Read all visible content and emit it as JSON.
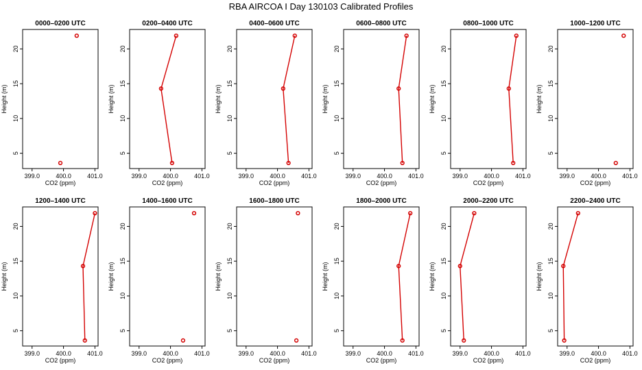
{
  "title": "RBA AIRCOA I  Day 130103  Calibrated Profiles",
  "colors": {
    "series": "#d40000",
    "axis": "#000000"
  },
  "chart_data": [
    {
      "type": "line",
      "title": "0000–0200 UTC",
      "xlabel": "CO2 (ppm)",
      "ylabel": "Height (m)",
      "xlim": [
        398.7,
        401.1
      ],
      "ylim": [
        2.8,
        22.8
      ],
      "x_ticks": [
        "399.0",
        "400.0",
        "401.0"
      ],
      "y_ticks": [
        "5",
        "10",
        "15",
        "20"
      ],
      "grid": false,
      "points": [
        {
          "co2": 400.42,
          "height": 21.9
        },
        {
          "co2": 399.9,
          "height": 3.6
        }
      ],
      "connected": false
    },
    {
      "type": "line",
      "title": "0200–0400 UTC",
      "xlabel": "CO2 (ppm)",
      "ylabel": "Height (m)",
      "xlim": [
        398.7,
        401.1
      ],
      "ylim": [
        2.8,
        22.8
      ],
      "x_ticks": [
        "399.0",
        "400.0",
        "401.0"
      ],
      "y_ticks": [
        "5",
        "10",
        "15",
        "20"
      ],
      "grid": false,
      "points": [
        {
          "co2": 400.18,
          "height": 21.9
        },
        {
          "co2": 399.7,
          "height": 14.3
        },
        {
          "co2": 400.05,
          "height": 3.6
        }
      ],
      "connected": true
    },
    {
      "type": "line",
      "title": "0400–0600 UTC",
      "xlabel": "CO2 (ppm)",
      "ylabel": "Height (m)",
      "xlim": [
        398.7,
        401.1
      ],
      "ylim": [
        2.8,
        22.8
      ],
      "x_ticks": [
        "399.0",
        "400.0",
        "401.0"
      ],
      "y_ticks": [
        "5",
        "10",
        "15",
        "20"
      ],
      "grid": false,
      "points": [
        {
          "co2": 400.55,
          "height": 21.9
        },
        {
          "co2": 400.18,
          "height": 14.3
        },
        {
          "co2": 400.35,
          "height": 3.6
        }
      ],
      "connected": true
    },
    {
      "type": "line",
      "title": "0600–0800 UTC",
      "xlabel": "CO2 (ppm)",
      "ylabel": "Height (m)",
      "xlim": [
        398.7,
        401.1
      ],
      "ylim": [
        2.8,
        22.8
      ],
      "x_ticks": [
        "399.0",
        "400.0",
        "401.0"
      ],
      "y_ticks": [
        "5",
        "10",
        "15",
        "20"
      ],
      "grid": false,
      "points": [
        {
          "co2": 400.7,
          "height": 21.9
        },
        {
          "co2": 400.45,
          "height": 14.3
        },
        {
          "co2": 400.57,
          "height": 3.6
        }
      ],
      "connected": true
    },
    {
      "type": "line",
      "title": "0800–1000 UTC",
      "xlabel": "CO2 (ppm)",
      "ylabel": "Height (m)",
      "xlim": [
        398.7,
        401.1
      ],
      "ylim": [
        2.8,
        22.8
      ],
      "x_ticks": [
        "399.0",
        "400.0",
        "401.0"
      ],
      "y_ticks": [
        "5",
        "10",
        "15",
        "20"
      ],
      "grid": false,
      "points": [
        {
          "co2": 400.79,
          "height": 21.9
        },
        {
          "co2": 400.55,
          "height": 14.3
        },
        {
          "co2": 400.69,
          "height": 3.6
        }
      ],
      "connected": true
    },
    {
      "type": "line",
      "title": "1000–1200 UTC",
      "xlabel": "CO2 (ppm)",
      "ylabel": "Height (m)",
      "xlim": [
        398.7,
        401.1
      ],
      "ylim": [
        2.8,
        22.8
      ],
      "x_ticks": [
        "399.0",
        "400.0",
        "401.0"
      ],
      "y_ticks": [
        "5",
        "10",
        "15",
        "20"
      ],
      "grid": false,
      "points": [
        {
          "co2": 400.8,
          "height": 21.9
        },
        {
          "co2": 400.55,
          "height": 3.6
        }
      ],
      "connected": false
    },
    {
      "type": "line",
      "title": "1200–1400 UTC",
      "xlabel": "CO2 (ppm)",
      "ylabel": "Height (m)",
      "xlim": [
        398.7,
        401.1
      ],
      "ylim": [
        2.8,
        22.8
      ],
      "x_ticks": [
        "399.0",
        "400.0",
        "401.0"
      ],
      "y_ticks": [
        "5",
        "10",
        "15",
        "20"
      ],
      "grid": false,
      "points": [
        {
          "co2": 401.0,
          "height": 21.9
        },
        {
          "co2": 400.62,
          "height": 14.3
        },
        {
          "co2": 400.68,
          "height": 3.6
        }
      ],
      "connected": true
    },
    {
      "type": "line",
      "title": "1400–1600 UTC",
      "xlabel": "CO2 (ppm)",
      "ylabel": "Height (m)",
      "xlim": [
        398.7,
        401.1
      ],
      "ylim": [
        2.8,
        22.8
      ],
      "x_ticks": [
        "399.0",
        "400.0",
        "401.0"
      ],
      "y_ticks": [
        "5",
        "10",
        "15",
        "20"
      ],
      "grid": false,
      "points": [
        {
          "co2": 400.75,
          "height": 21.9
        },
        {
          "co2": 400.4,
          "height": 3.6
        }
      ],
      "connected": false
    },
    {
      "type": "line",
      "title": "1600–1800 UTC",
      "xlabel": "CO2 (ppm)",
      "ylabel": "Height (m)",
      "xlim": [
        398.7,
        401.1
      ],
      "ylim": [
        2.8,
        22.8
      ],
      "x_ticks": [
        "399.0",
        "400.0",
        "401.0"
      ],
      "y_ticks": [
        "5",
        "10",
        "15",
        "20"
      ],
      "grid": false,
      "points": [
        {
          "co2": 400.65,
          "height": 21.9
        },
        {
          "co2": 400.6,
          "height": 3.6
        }
      ],
      "connected": false
    },
    {
      "type": "line",
      "title": "1800–2000 UTC",
      "xlabel": "CO2 (ppm)",
      "ylabel": "Height (m)",
      "xlim": [
        398.7,
        401.1
      ],
      "ylim": [
        2.8,
        22.8
      ],
      "x_ticks": [
        "399.0",
        "400.0",
        "401.0"
      ],
      "y_ticks": [
        "5",
        "10",
        "15",
        "20"
      ],
      "grid": false,
      "points": [
        {
          "co2": 400.82,
          "height": 21.9
        },
        {
          "co2": 400.45,
          "height": 14.3
        },
        {
          "co2": 400.57,
          "height": 3.6
        }
      ],
      "connected": true
    },
    {
      "type": "line",
      "title": "2000–2200 UTC",
      "xlabel": "CO2 (ppm)",
      "ylabel": "Height (m)",
      "xlim": [
        398.7,
        401.1
      ],
      "ylim": [
        2.8,
        22.8
      ],
      "x_ticks": [
        "399.0",
        "400.0",
        "401.0"
      ],
      "y_ticks": [
        "5",
        "10",
        "15",
        "20"
      ],
      "grid": false,
      "points": [
        {
          "co2": 399.45,
          "height": 21.9
        },
        {
          "co2": 399.0,
          "height": 14.3
        },
        {
          "co2": 399.12,
          "height": 3.6
        }
      ],
      "connected": true
    },
    {
      "type": "line",
      "title": "2200–2400 UTC",
      "xlabel": "CO2 (ppm)",
      "ylabel": "Height (m)",
      "xlim": [
        398.7,
        401.1
      ],
      "ylim": [
        2.8,
        22.8
      ],
      "x_ticks": [
        "399.0",
        "400.0",
        "401.0"
      ],
      "y_ticks": [
        "5",
        "10",
        "15",
        "20"
      ],
      "grid": false,
      "points": [
        {
          "co2": 399.35,
          "height": 21.9
        },
        {
          "co2": 398.88,
          "height": 14.3
        },
        {
          "co2": 398.91,
          "height": 3.6
        }
      ],
      "connected": true
    }
  ]
}
